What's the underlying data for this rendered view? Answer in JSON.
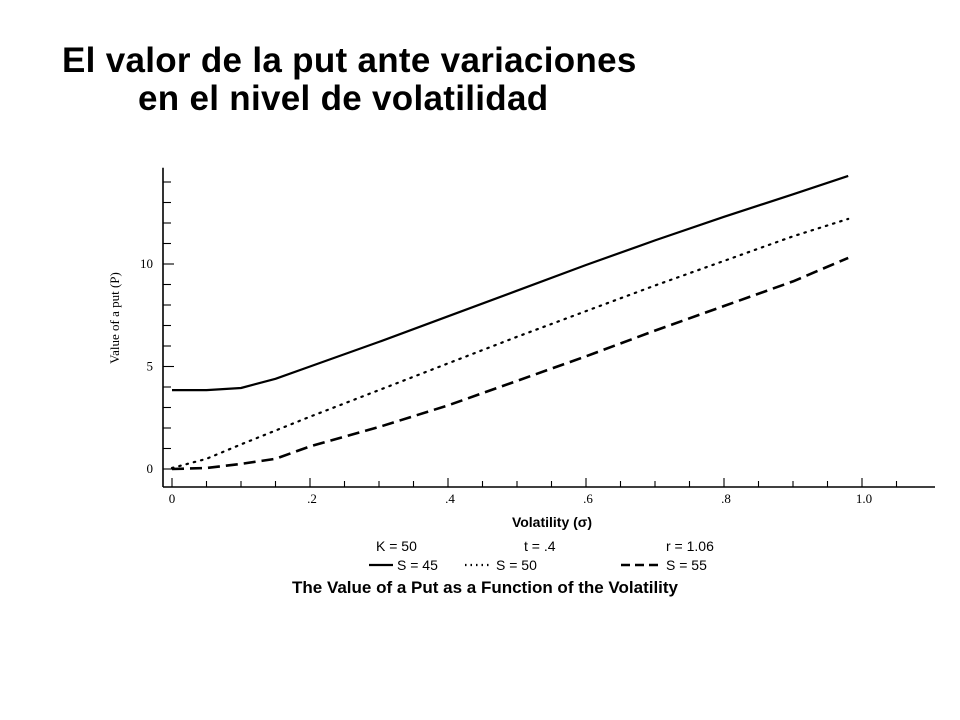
{
  "slide": {
    "title_line1": "El valor de la put ante variaciones",
    "title_line2": "en el nivel de volatilidad"
  },
  "chart_data": {
    "type": "line",
    "title": "The Value of a Put as a Function of the Volatility",
    "xlabel": "Volatility (σ)",
    "ylabel": "Value of a put (P)",
    "xlim": [
      0,
      1.0
    ],
    "ylim": [
      0,
      14.5
    ],
    "x_ticks": [
      {
        "value": 0,
        "label": "0"
      },
      {
        "value": 0.2,
        "label": ".2"
      },
      {
        "value": 0.4,
        "label": ".4"
      },
      {
        "value": 0.6,
        "label": ".6"
      },
      {
        "value": 0.8,
        "label": ".8"
      },
      {
        "value": 1.0,
        "label": "1.0"
      }
    ],
    "y_ticks": [
      {
        "value": 0,
        "label": "0"
      },
      {
        "value": 5,
        "label": "5"
      },
      {
        "value": 10,
        "label": "10"
      }
    ],
    "parameters": [
      "K = 50",
      "t = .4",
      "r = 1.06"
    ],
    "series": [
      {
        "name": "S = 45",
        "style": "solid",
        "x": [
          0,
          0.05,
          0.1,
          0.15,
          0.2,
          0.3,
          0.4,
          0.5,
          0.6,
          0.7,
          0.8,
          0.9,
          0.98
        ],
        "y": [
          3.85,
          3.85,
          3.95,
          4.4,
          5.0,
          6.2,
          7.45,
          8.7,
          9.95,
          11.15,
          12.3,
          13.4,
          14.3
        ]
      },
      {
        "name": "S = 50",
        "style": "dotted",
        "x": [
          0,
          0.05,
          0.1,
          0.2,
          0.3,
          0.4,
          0.5,
          0.6,
          0.7,
          0.8,
          0.9,
          0.98
        ],
        "y": [
          0.05,
          0.5,
          1.2,
          2.55,
          3.85,
          5.15,
          6.45,
          7.7,
          8.95,
          10.15,
          11.35,
          12.2
        ]
      },
      {
        "name": "S = 55",
        "style": "dashed",
        "x": [
          0,
          0.05,
          0.1,
          0.15,
          0.2,
          0.3,
          0.4,
          0.5,
          0.6,
          0.7,
          0.8,
          0.9,
          0.98
        ],
        "y": [
          0,
          0.05,
          0.25,
          0.5,
          1.1,
          2.05,
          3.1,
          4.3,
          5.5,
          6.75,
          7.95,
          9.15,
          10.3
        ]
      }
    ],
    "grid": false,
    "legend_position": "bottom"
  }
}
